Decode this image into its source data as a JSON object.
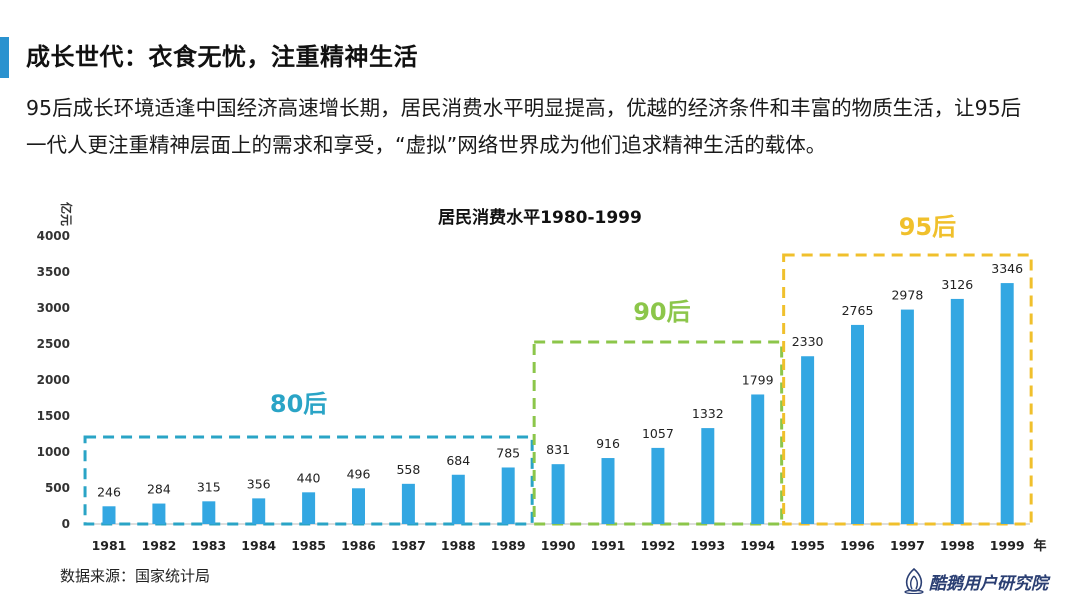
{
  "slide": {
    "heading": "成长世代：衣食无忧，注重精神生活",
    "intro": "95后成长环境适逢中国经济高速增长期，居民消费水平明显提高，优越的经济条件和丰富的物质生活，让95后一代人更注重精神层面上的需求和享受，“虚拟”网络世界成为他们追求精神生活的载体。",
    "source": "数据来源：国家统计局",
    "brand": "酷鹅用户研究院",
    "brand_icon": "penguin-logo-icon"
  },
  "colors": {
    "accent": "#2a92cf",
    "bar": "#33a7e2",
    "box_80s": "#2aa4c6",
    "box_90s": "#8cc64a",
    "box_95s": "#f0c02c"
  },
  "chart_data": {
    "type": "bar",
    "title": "居民消费水平1980-1999",
    "ylabel": "亿元",
    "xlabel": "年",
    "categories": [
      "1981",
      "1982",
      "1983",
      "1984",
      "1985",
      "1986",
      "1987",
      "1988",
      "1989",
      "1990",
      "1991",
      "1992",
      "1993",
      "1994",
      "1995",
      "1996",
      "1997",
      "1998",
      "1999"
    ],
    "values": [
      246,
      284,
      315,
      356,
      440,
      496,
      558,
      684,
      785,
      831,
      916,
      1057,
      1332,
      1799,
      2330,
      2765,
      2978,
      3126,
      3346
    ],
    "ylim": [
      0,
      4000
    ],
    "yticks": [
      0,
      500,
      1000,
      1500,
      2000,
      2500,
      3000,
      3500,
      4000
    ],
    "grid": false,
    "data_labels": true,
    "groups": [
      {
        "label": "80后",
        "start": "1981",
        "end": "1989",
        "color": "#2aa4c6"
      },
      {
        "label": "90后",
        "start": "1990",
        "end": "1994",
        "color": "#8cc64a"
      },
      {
        "label": "95后",
        "start": "1995",
        "end": "1999",
        "color": "#f0c02c"
      }
    ]
  }
}
